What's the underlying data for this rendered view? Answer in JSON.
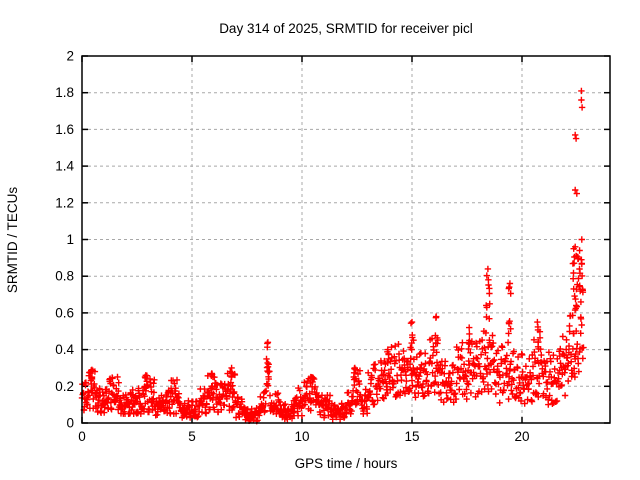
{
  "chart_data": {
    "type": "scatter",
    "marker": "plus",
    "marker_color": "#ff0000",
    "grid_color": "#a8a8a8",
    "axis_color": "#000000",
    "background_color": "#ffffff",
    "title": "Day 314 of 2025, SRMTID for receiver picl",
    "xlabel": "GPS time / hours",
    "ylabel": "SRMTID / TECUs",
    "xlim": [
      0,
      24
    ],
    "ylim": [
      0,
      2
    ],
    "xticks": [
      0,
      5,
      10,
      15,
      20
    ],
    "yticks": [
      0,
      0.2,
      0.4,
      0.6,
      0.8,
      1,
      1.2,
      1.4,
      1.6,
      1.8,
      2
    ],
    "grid": true,
    "legend": false,
    "series_description": "SRMTID scintillation-like index vs GPS time; dense noisy band 0.05-0.3 TECU for 0-12 h, dip near 7.5 h, narrow spike to 0.44 at 8.4 h, gradual rise after 12 h to 0.2-0.5, spikes 0.84 at 18.45 h and 0.76 at 19.45 h, steep climb at 22.5 h with outliers up to 1.8 TECU, data ends ~22.9 h",
    "point_bands": [
      [
        0.0,
        0.3,
        20,
        0.07,
        0.24
      ],
      [
        0.3,
        0.7,
        26,
        0.08,
        0.3
      ],
      [
        0.7,
        1.2,
        30,
        0.05,
        0.2
      ],
      [
        1.2,
        1.7,
        30,
        0.07,
        0.26
      ],
      [
        1.7,
        2.3,
        34,
        0.05,
        0.17
      ],
      [
        2.3,
        2.7,
        24,
        0.05,
        0.19
      ],
      [
        2.7,
        3.3,
        34,
        0.06,
        0.27
      ],
      [
        3.3,
        3.9,
        34,
        0.04,
        0.16
      ],
      [
        3.9,
        4.5,
        34,
        0.05,
        0.24
      ],
      [
        4.5,
        5.3,
        40,
        0.03,
        0.13
      ],
      [
        5.3,
        5.7,
        22,
        0.05,
        0.2
      ],
      [
        5.7,
        6.1,
        24,
        0.07,
        0.28
      ],
      [
        6.1,
        6.5,
        24,
        0.06,
        0.22
      ],
      [
        6.5,
        7.0,
        28,
        0.07,
        0.3
      ],
      [
        7.0,
        7.3,
        16,
        0.03,
        0.15
      ],
      [
        7.3,
        8.1,
        40,
        0.01,
        0.09
      ],
      [
        8.1,
        8.35,
        14,
        0.04,
        0.18
      ],
      [
        8.35,
        8.55,
        10,
        0.15,
        0.35
      ],
      [
        8.55,
        9.0,
        24,
        0.04,
        0.17
      ],
      [
        9.0,
        9.6,
        30,
        0.02,
        0.11
      ],
      [
        9.6,
        10.1,
        26,
        0.04,
        0.2
      ],
      [
        10.1,
        10.7,
        30,
        0.05,
        0.25
      ],
      [
        10.7,
        11.3,
        32,
        0.03,
        0.16
      ],
      [
        11.3,
        12.0,
        36,
        0.02,
        0.12
      ],
      [
        12.0,
        12.3,
        16,
        0.05,
        0.18
      ],
      [
        12.3,
        12.65,
        18,
        0.09,
        0.3
      ],
      [
        12.65,
        13.0,
        18,
        0.05,
        0.19
      ],
      [
        13.0,
        13.5,
        26,
        0.1,
        0.32
      ],
      [
        13.5,
        14.0,
        28,
        0.12,
        0.4
      ],
      [
        14.0,
        14.6,
        32,
        0.14,
        0.44
      ],
      [
        14.6,
        15.1,
        28,
        0.16,
        0.45
      ],
      [
        15.1,
        15.7,
        32,
        0.14,
        0.4
      ],
      [
        15.7,
        16.3,
        32,
        0.16,
        0.48
      ],
      [
        16.3,
        16.9,
        32,
        0.11,
        0.36
      ],
      [
        16.9,
        17.5,
        32,
        0.13,
        0.45
      ],
      [
        17.5,
        18.1,
        32,
        0.14,
        0.48
      ],
      [
        18.1,
        18.7,
        34,
        0.15,
        0.55
      ],
      [
        18.7,
        19.3,
        32,
        0.11,
        0.42
      ],
      [
        19.3,
        19.9,
        32,
        0.13,
        0.48
      ],
      [
        19.9,
        20.5,
        32,
        0.1,
        0.4
      ],
      [
        20.5,
        21.1,
        34,
        0.13,
        0.5
      ],
      [
        21.1,
        21.6,
        28,
        0.1,
        0.4
      ],
      [
        21.6,
        22.1,
        30,
        0.15,
        0.48
      ],
      [
        22.1,
        22.45,
        22,
        0.25,
        0.62
      ],
      [
        22.3,
        22.78,
        32,
        0.55,
        0.92
      ],
      [
        22.45,
        22.8,
        14,
        0.28,
        0.6
      ]
    ],
    "spikes": [
      [
        0.45,
        0.06,
        5,
        0.2,
        0.29
      ],
      [
        2.9,
        0.05,
        4,
        0.18,
        0.26
      ],
      [
        5.9,
        0.05,
        4,
        0.18,
        0.27
      ],
      [
        6.8,
        0.05,
        5,
        0.2,
        0.3
      ],
      [
        8.45,
        0.06,
        9,
        0.2,
        0.44
      ],
      [
        10.4,
        0.06,
        5,
        0.15,
        0.25
      ],
      [
        12.4,
        0.05,
        5,
        0.22,
        0.3
      ],
      [
        13.9,
        0.05,
        4,
        0.3,
        0.4
      ],
      [
        15.0,
        0.07,
        7,
        0.4,
        0.55
      ],
      [
        16.1,
        0.08,
        7,
        0.42,
        0.58
      ],
      [
        17.6,
        0.07,
        6,
        0.4,
        0.52
      ],
      [
        18.45,
        0.08,
        11,
        0.5,
        0.84
      ],
      [
        19.45,
        0.07,
        9,
        0.45,
        0.76
      ],
      [
        20.7,
        0.07,
        7,
        0.38,
        0.55
      ]
    ],
    "outliers": [
      [
        22.7,
        1.81
      ],
      [
        22.7,
        1.76
      ],
      [
        22.73,
        1.72
      ],
      [
        22.42,
        1.57
      ],
      [
        22.46,
        1.55
      ],
      [
        22.42,
        1.27
      ],
      [
        22.49,
        1.25
      ],
      [
        22.72,
        1.0
      ],
      [
        22.35,
        0.95
      ],
      [
        22.42,
        0.96
      ],
      [
        22.62,
        0.94
      ],
      [
        22.46,
        0.91
      ],
      [
        22.72,
        0.87
      ]
    ]
  }
}
